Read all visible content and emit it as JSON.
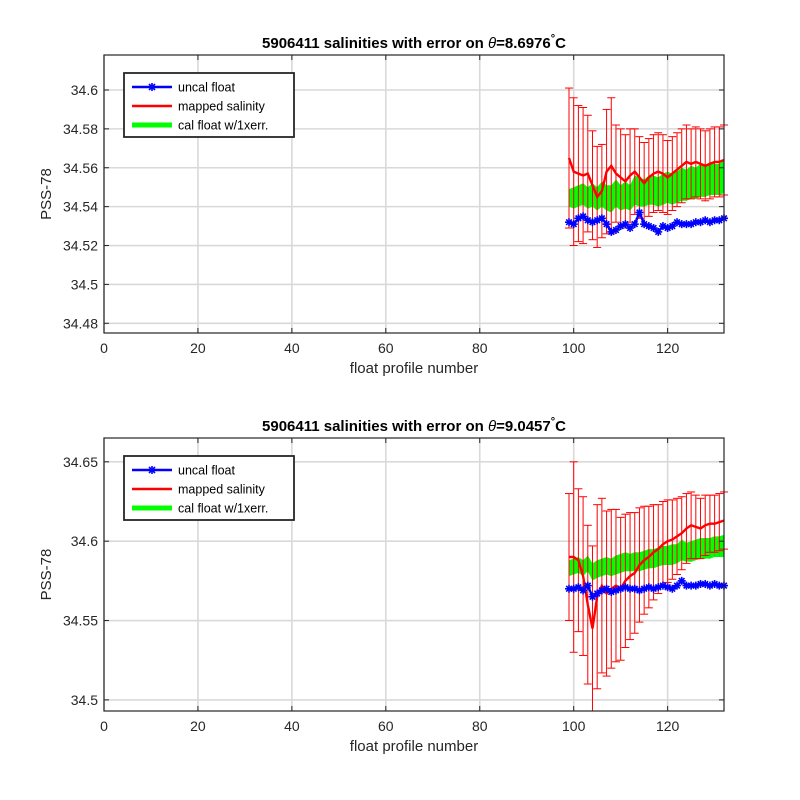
{
  "chart_data": [
    {
      "type": "line",
      "title_prefix": "5906411 salinities with error on ",
      "title_theta": "θ",
      "title_value": "=8.6976",
      "title_degree": "°",
      "title_unit": "C",
      "xlabel": "float profile number",
      "ylabel": "PSS-78",
      "xlim": [
        0,
        132
      ],
      "ylim": [
        34.475,
        34.618
      ],
      "xticks": [
        0,
        20,
        40,
        60,
        80,
        100,
        120
      ],
      "yticks": [
        34.48,
        34.5,
        34.52,
        34.54,
        34.56,
        34.58,
        34.6
      ],
      "ytick_labels": [
        "34.48",
        "34.5",
        "34.52",
        "34.54",
        "34.56",
        "34.58",
        "34.6"
      ],
      "grid": true,
      "legend_position": "top-left",
      "legend": [
        "uncal float",
        "mapped salinity",
        "cal float w/1xerr."
      ],
      "x": [
        99,
        100,
        101,
        102,
        103,
        104,
        105,
        106,
        107,
        108,
        109,
        110,
        111,
        112,
        113,
        114,
        115,
        116,
        117,
        118,
        119,
        120,
        121,
        122,
        123,
        124,
        125,
        126,
        127,
        128,
        129,
        130,
        131,
        132
      ],
      "series": [
        {
          "name": "uncal float",
          "color": "#0000ff",
          "marker": "star",
          "values": [
            34.532,
            34.531,
            34.534,
            34.535,
            34.533,
            34.532,
            34.533,
            34.534,
            34.531,
            34.527,
            34.528,
            34.53,
            34.531,
            34.529,
            34.531,
            34.537,
            34.531,
            34.53,
            34.529,
            34.527,
            34.53,
            34.529,
            34.53,
            34.532,
            34.531,
            34.531,
            34.531,
            34.532,
            34.532,
            34.533,
            34.532,
            34.533,
            34.533,
            34.534
          ]
        },
        {
          "name": "mapped salinity",
          "color": "#ff0000",
          "values": [
            34.565,
            34.558,
            34.557,
            34.556,
            34.557,
            34.551,
            34.545,
            34.548,
            34.558,
            34.561,
            34.557,
            34.555,
            34.553,
            34.556,
            34.558,
            34.555,
            34.552,
            34.555,
            34.557,
            34.558,
            34.557,
            34.555,
            34.557,
            34.559,
            34.561,
            34.563,
            34.562,
            34.563,
            34.562,
            34.561,
            34.562,
            34.563,
            34.563,
            34.564
          ],
          "error": [
            0.036,
            0.038,
            0.035,
            0.035,
            0.03,
            0.028,
            0.026,
            0.024,
            0.032,
            0.035,
            0.025,
            0.025,
            0.024,
            0.024,
            0.022,
            0.021,
            0.021,
            0.02,
            0.02,
            0.02,
            0.02,
            0.019,
            0.019,
            0.019,
            0.019,
            0.019,
            0.018,
            0.018,
            0.018,
            0.018,
            0.018,
            0.018,
            0.018,
            0.018
          ]
        },
        {
          "name": "cal float w/1xerr.",
          "color": "#00ff00",
          "lower": [
            34.54,
            34.539,
            34.54,
            34.541,
            34.539,
            34.54,
            34.538,
            34.54,
            34.538,
            34.537,
            34.54,
            34.538,
            34.539,
            34.538,
            34.541,
            34.54,
            34.54,
            34.541,
            34.541,
            34.54,
            34.541,
            34.542,
            34.541,
            34.542,
            34.543,
            34.543,
            34.544,
            34.544,
            34.545,
            34.545,
            34.546,
            34.546,
            34.546,
            34.547
          ],
          "upper": [
            34.549,
            34.55,
            34.551,
            34.552,
            34.55,
            34.552,
            34.55,
            34.553,
            34.551,
            34.551,
            34.554,
            34.551,
            34.553,
            34.551,
            34.556,
            34.555,
            34.554,
            34.556,
            34.556,
            34.555,
            34.557,
            34.558,
            34.557,
            34.558,
            34.56,
            34.559,
            34.561,
            34.56,
            34.562,
            34.561,
            34.563,
            34.562,
            34.562,
            34.564
          ]
        }
      ]
    },
    {
      "type": "line",
      "title_prefix": "5906411 salinities with error on ",
      "title_theta": "θ",
      "title_value": "=9.0457",
      "title_degree": "°",
      "title_unit": "C",
      "xlabel": "float profile number",
      "ylabel": "PSS-78",
      "xlim": [
        0,
        132
      ],
      "ylim": [
        34.493,
        34.665
      ],
      "xticks": [
        0,
        20,
        40,
        60,
        80,
        100,
        120
      ],
      "yticks": [
        34.5,
        34.55,
        34.6,
        34.65
      ],
      "ytick_labels": [
        "34.5",
        "34.55",
        "34.6",
        "34.65"
      ],
      "grid": true,
      "legend_position": "top-left",
      "legend": [
        "uncal float",
        "mapped salinity",
        "cal float w/1xerr."
      ],
      "x": [
        99,
        100,
        101,
        102,
        103,
        104,
        105,
        106,
        107,
        108,
        109,
        110,
        111,
        112,
        113,
        114,
        115,
        116,
        117,
        118,
        119,
        120,
        121,
        122,
        123,
        124,
        125,
        126,
        127,
        128,
        129,
        130,
        131,
        132
      ],
      "series": [
        {
          "name": "uncal float",
          "color": "#0000ff",
          "marker": "star",
          "values": [
            34.57,
            34.57,
            34.571,
            34.569,
            34.572,
            34.565,
            34.567,
            34.569,
            34.57,
            34.568,
            34.569,
            34.57,
            34.571,
            34.57,
            34.57,
            34.569,
            34.57,
            34.571,
            34.57,
            34.571,
            34.572,
            34.571,
            34.57,
            34.572,
            34.575,
            34.572,
            34.572,
            34.572,
            34.573,
            34.573,
            34.572,
            34.573,
            34.572,
            34.572
          ],
          "lower_dummy": []
        },
        {
          "name": "mapped salinity",
          "color": "#ff0000",
          "values": [
            34.59,
            34.59,
            34.588,
            34.578,
            34.56,
            34.545,
            34.565,
            34.572,
            34.567,
            34.57,
            34.572,
            34.57,
            34.575,
            34.578,
            34.58,
            34.585,
            34.588,
            34.59,
            34.593,
            34.595,
            34.598,
            34.6,
            34.601,
            34.603,
            34.605,
            34.608,
            34.61,
            34.609,
            34.608,
            34.61,
            34.611,
            34.611,
            34.612,
            34.613
          ],
          "error": [
            0.04,
            0.06,
            0.045,
            0.05,
            0.05,
            0.052,
            0.058,
            0.055,
            0.052,
            0.05,
            0.048,
            0.045,
            0.042,
            0.04,
            0.038,
            0.036,
            0.034,
            0.032,
            0.03,
            0.028,
            0.027,
            0.026,
            0.025,
            0.024,
            0.023,
            0.022,
            0.021,
            0.02,
            0.019,
            0.019,
            0.018,
            0.018,
            0.018,
            0.018
          ]
        },
        {
          "name": "cal float w/1xerr.",
          "color": "#00ff00",
          "lower": [
            34.578,
            34.579,
            34.58,
            34.578,
            34.581,
            34.575,
            34.577,
            34.578,
            34.579,
            34.578,
            34.579,
            34.58,
            34.581,
            34.581,
            34.581,
            34.581,
            34.582,
            34.583,
            34.583,
            34.584,
            34.585,
            34.585,
            34.585,
            34.586,
            34.588,
            34.587,
            34.587,
            34.588,
            34.589,
            34.589,
            34.589,
            34.59,
            34.59,
            34.59
          ],
          "upper": [
            34.588,
            34.589,
            34.59,
            34.588,
            34.591,
            34.586,
            34.588,
            34.589,
            34.59,
            34.589,
            34.591,
            34.592,
            34.593,
            34.592,
            34.593,
            34.593,
            34.594,
            34.595,
            34.595,
            34.596,
            34.597,
            34.597,
            34.598,
            34.598,
            34.601,
            34.599,
            34.6,
            34.601,
            34.602,
            34.602,
            34.602,
            34.603,
            34.603,
            34.604
          ]
        }
      ]
    }
  ]
}
